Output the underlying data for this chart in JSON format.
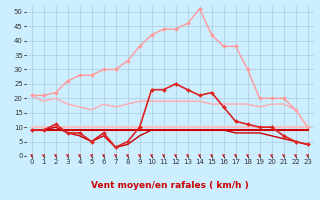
{
  "background_color": "#cceeff",
  "grid_color": "#aaccdd",
  "x_label": "Vent moyen/en rafales ( km/h )",
  "x_ticks": [
    0,
    1,
    2,
    3,
    4,
    5,
    6,
    7,
    8,
    9,
    10,
    11,
    12,
    13,
    14,
    15,
    16,
    17,
    18,
    19,
    20,
    21,
    22,
    23
  ],
  "ylim": [
    0,
    52
  ],
  "y_ticks": [
    0,
    5,
    10,
    15,
    20,
    25,
    30,
    35,
    40,
    45,
    50
  ],
  "series": [
    {
      "x": [
        0,
        1,
        2,
        3,
        4,
        5,
        6,
        7,
        8,
        9,
        10,
        11,
        12,
        13,
        14,
        15,
        16,
        17,
        18,
        19,
        20,
        21,
        22,
        23
      ],
      "y": [
        21,
        21,
        22,
        26,
        28,
        28,
        30,
        30,
        33,
        38,
        42,
        44,
        44,
        46,
        51,
        42,
        38,
        38,
        30,
        20,
        20,
        20,
        16,
        10
      ],
      "color": "#ff9999",
      "lw": 1.0,
      "marker": "D",
      "ms": 2.0,
      "zorder": 2
    },
    {
      "x": [
        0,
        1,
        2,
        3,
        4,
        5,
        6,
        7,
        8,
        9,
        10,
        11,
        12,
        13,
        14,
        15,
        16,
        17,
        18,
        19,
        20,
        21,
        22,
        23
      ],
      "y": [
        21,
        19,
        20,
        18,
        17,
        16,
        18,
        17,
        18,
        19,
        19,
        19,
        19,
        19,
        19,
        18,
        18,
        18,
        18,
        17,
        18,
        18,
        16,
        10
      ],
      "color": "#ffaaaa",
      "lw": 1.0,
      "marker": null,
      "zorder": 2
    },
    {
      "x": [
        0,
        1,
        2,
        3,
        4,
        5,
        6,
        7,
        8,
        9,
        10,
        11,
        12,
        13,
        14,
        15,
        16,
        17,
        18,
        19,
        20,
        21,
        22,
        23
      ],
      "y": [
        10,
        10,
        10,
        10,
        10,
        10,
        10,
        10,
        10,
        10,
        10,
        10,
        10,
        10,
        10,
        10,
        10,
        10,
        10,
        10,
        10,
        10,
        10,
        10
      ],
      "color": "#ffbbbb",
      "lw": 1.2,
      "marker": null,
      "zorder": 2
    },
    {
      "x": [
        0,
        1,
        2,
        3,
        4,
        5,
        6,
        7,
        8,
        9,
        10,
        11,
        12,
        13,
        14,
        15,
        16,
        17,
        18,
        19,
        20,
        21,
        22,
        23
      ],
      "y": [
        9,
        9,
        11,
        8,
        8,
        5,
        8,
        3,
        5,
        10,
        23,
        23,
        25,
        23,
        21,
        22,
        17,
        12,
        11,
        10,
        10,
        7,
        5,
        4
      ],
      "color": "#dd2222",
      "lw": 1.2,
      "marker": "D",
      "ms": 2.0,
      "zorder": 4
    },
    {
      "x": [
        0,
        1,
        2,
        3,
        4,
        5,
        6,
        7,
        8,
        9,
        10,
        11,
        12,
        13,
        14,
        15,
        16,
        17,
        18,
        19,
        20,
        21,
        22,
        23
      ],
      "y": [
        9,
        9,
        10,
        8,
        7,
        5,
        7,
        3,
        4,
        7,
        9,
        9,
        9,
        9,
        9,
        9,
        9,
        8,
        8,
        8,
        7,
        6,
        5,
        4
      ],
      "color": "#cc0000",
      "lw": 1.0,
      "marker": null,
      "zorder": 3
    },
    {
      "x": [
        0,
        1,
        2,
        3,
        4,
        5,
        6,
        7,
        8,
        9,
        10,
        11,
        12,
        13,
        14,
        15,
        16,
        17,
        18,
        19,
        20,
        21,
        22,
        23
      ],
      "y": [
        9,
        9,
        9,
        9,
        9,
        9,
        9,
        9,
        9,
        9,
        9,
        9,
        9,
        9,
        9,
        9,
        9,
        9,
        9,
        9,
        9,
        9,
        9,
        9
      ],
      "color": "#cc0000",
      "lw": 1.5,
      "marker": null,
      "zorder": 2
    }
  ],
  "tick_fontsize": 5.0,
  "axis_fontsize": 6.5
}
